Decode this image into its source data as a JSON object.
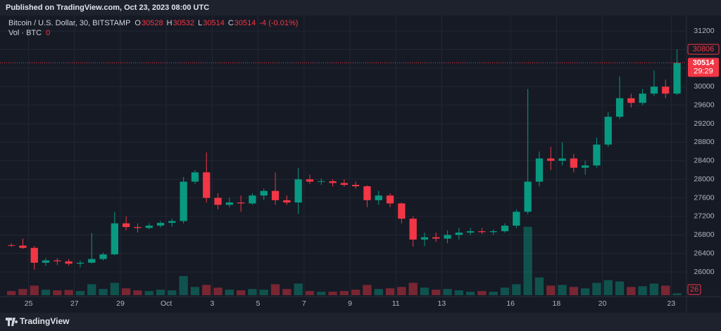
{
  "published": "Published on TradingView.com, Oct 23, 2023 08:00 UTC",
  "brand": "TradingView",
  "chart_data": {
    "type": "candlestick",
    "title": "Bitcoin / U.S. Dollar, 30, BITSTAMP",
    "legend_values": [
      {
        "label": "O",
        "value": 30528
      },
      {
        "label": "H",
        "value": 30532
      },
      {
        "label": "L",
        "value": 30514
      },
      {
        "label": "C",
        "value": 30514
      }
    ],
    "change": "-4 (-0.01%)",
    "volume_label": "Vol · BTC",
    "volume_value": 0,
    "countdown": "29:29",
    "up_color": "#089981",
    "down_color": "#f23645",
    "grid": true,
    "categories": [
      null,
      null,
      "25",
      null,
      null,
      null,
      "27",
      null,
      null,
      null,
      "29",
      null,
      null,
      null,
      "Oct",
      null,
      null,
      null,
      "3",
      null,
      null,
      null,
      "5",
      null,
      null,
      null,
      "7",
      null,
      null,
      null,
      "9",
      null,
      null,
      null,
      "11",
      null,
      null,
      null,
      "13",
      null,
      null,
      null,
      null,
      null,
      "16",
      null,
      null,
      null,
      "18",
      null,
      null,
      null,
      "20",
      null,
      null,
      null,
      null,
      null,
      "23"
    ],
    "open": [
      26580,
      26570,
      26520,
      26200,
      26250,
      26230,
      26180,
      26200,
      26280,
      26380,
      27050,
      26970,
      26950,
      27000,
      27060,
      27100,
      27950,
      28150,
      27600,
      27450,
      27500,
      27480,
      27650,
      27750,
      27550,
      27500,
      28000,
      27950,
      27960,
      27920,
      27880,
      27850,
      27550,
      27650,
      27480,
      27150,
      26700,
      26750,
      26720,
      26800,
      26850,
      26880,
      26860,
      26880,
      27000,
      27300,
      27950,
      28450,
      28400,
      28450,
      28250,
      28300,
      28750,
      29350,
      29750,
      29650,
      29850,
      30000,
      29850
    ],
    "high": [
      26620,
      26720,
      26560,
      26300,
      26300,
      26280,
      26250,
      26840,
      26420,
      27300,
      27200,
      27050,
      27050,
      27100,
      27150,
      28050,
      28200,
      28580,
      27700,
      27600,
      27650,
      27700,
      27800,
      28150,
      27650,
      28250,
      28100,
      28020,
      28000,
      28000,
      27950,
      27870,
      27750,
      27700,
      27500,
      27200,
      26850,
      26850,
      26900,
      26950,
      26950,
      26950,
      26920,
      27050,
      27350,
      29950,
      28600,
      28700,
      28800,
      28550,
      28400,
      28900,
      29450,
      30220,
      29850,
      29950,
      30350,
      30150,
      30806
    ],
    "low": [
      26540,
      26500,
      26050,
      26130,
      26150,
      26140,
      26100,
      26180,
      26250,
      26360,
      26900,
      26850,
      26920,
      26960,
      26980,
      27050,
      27900,
      27500,
      27350,
      27400,
      27300,
      27450,
      27550,
      27450,
      27450,
      27250,
      27900,
      27880,
      27850,
      27840,
      27800,
      27400,
      27450,
      27400,
      27050,
      26550,
      26560,
      26650,
      26620,
      26700,
      26800,
      26820,
      26800,
      26850,
      26950,
      27250,
      27850,
      28200,
      28300,
      28150,
      28100,
      28250,
      28700,
      29300,
      29550,
      29600,
      29800,
      29750,
      29820
    ],
    "close": [
      26570,
      26520,
      26200,
      26250,
      26230,
      26180,
      26200,
      26280,
      26380,
      27050,
      26970,
      26950,
      27000,
      27060,
      27100,
      27950,
      28150,
      27600,
      27450,
      27500,
      27480,
      27650,
      27750,
      27550,
      27500,
      28000,
      27950,
      27960,
      27920,
      27880,
      27850,
      27550,
      27650,
      27480,
      27150,
      26700,
      26750,
      26720,
      26800,
      26850,
      26880,
      26860,
      26880,
      27000,
      27300,
      27950,
      28450,
      28400,
      28450,
      28250,
      28300,
      28750,
      29350,
      29750,
      29650,
      29850,
      30000,
      29850,
      30514
    ],
    "volume": [
      60,
      90,
      140,
      80,
      70,
      75,
      60,
      160,
      90,
      180,
      100,
      70,
      60,
      80,
      70,
      280,
      120,
      150,
      110,
      80,
      70,
      90,
      80,
      160,
      90,
      170,
      60,
      50,
      50,
      60,
      80,
      150,
      90,
      100,
      120,
      180,
      110,
      80,
      90,
      70,
      50,
      60,
      50,
      110,
      160,
      1000,
      260,
      140,
      150,
      120,
      100,
      180,
      220,
      200,
      120,
      130,
      170,
      140,
      26
    ],
    "ylim": [
      25500,
      31400
    ],
    "yticks": [
      26000,
      26400,
      26800,
      27200,
      27600,
      28000,
      28400,
      28800,
      29200,
      29600,
      30000,
      30400,
      30800,
      31200
    ],
    "y2lim": [
      0,
      4000
    ]
  }
}
